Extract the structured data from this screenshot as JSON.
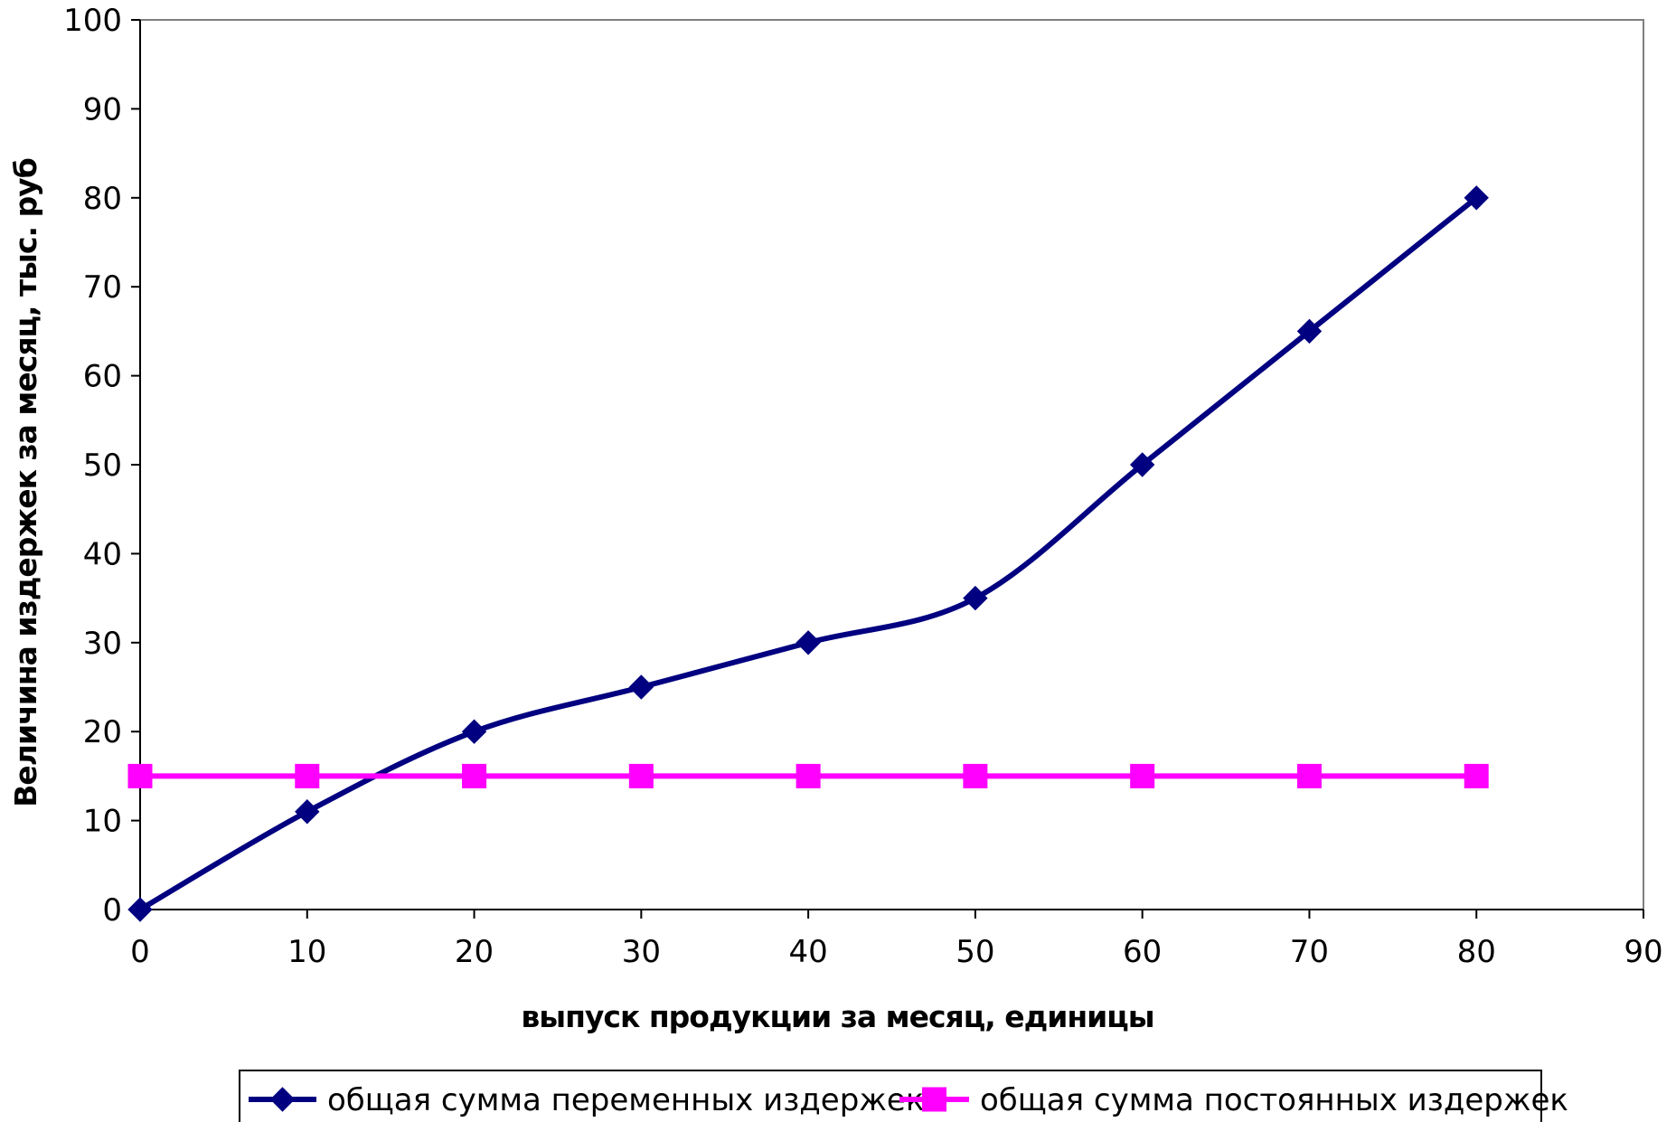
{
  "chart_data": {
    "type": "line",
    "title": "",
    "xlabel": "выпуск продукции за месяц, единицы",
    "ylabel": "Величина издержек за месяц, тыс. руб",
    "xlim": [
      0,
      90
    ],
    "ylim": [
      0,
      100
    ],
    "xticks": [
      0,
      10,
      20,
      30,
      40,
      50,
      60,
      70,
      80,
      90
    ],
    "yticks": [
      0,
      10,
      20,
      30,
      40,
      50,
      60,
      70,
      80,
      90,
      100
    ],
    "grid": false,
    "legend_position": "bottom",
    "x": [
      0,
      10,
      20,
      30,
      40,
      50,
      60,
      70,
      80
    ],
    "series": [
      {
        "name": "общая сумма переменных издержек",
        "values": [
          0,
          11,
          20,
          25,
          30,
          35,
          50,
          65,
          80
        ],
        "color": "#000080",
        "marker": "diamond",
        "smooth": true
      },
      {
        "name": "общая сумма постоянных издержек",
        "values": [
          15,
          15,
          15,
          15,
          15,
          15,
          15,
          15,
          15
        ],
        "color": "#FF00FF",
        "marker": "square",
        "smooth": false
      }
    ]
  }
}
